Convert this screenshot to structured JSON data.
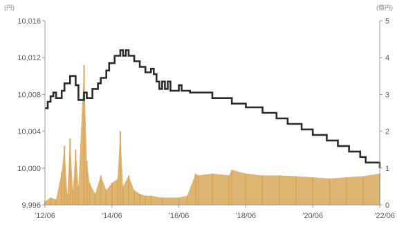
{
  "chart_data": [
    {
      "type": "line",
      "axis": "left",
      "title": "",
      "xlabel": "",
      "ylabel": "",
      "unit": "(円)",
      "ylim": [
        9996,
        10016
      ],
      "yticks": [
        "10,016",
        "10,012",
        "10,008",
        "10,004",
        "10,000",
        "9,996"
      ],
      "ytick_values": [
        10016,
        10012,
        10008,
        10004,
        10000,
        9996
      ],
      "color": "#2b2b2b",
      "points": [
        [
          "2012-06",
          10006.5
        ],
        [
          "2012-07",
          10007.2
        ],
        [
          "2012-08",
          10007.8
        ],
        [
          "2012-09",
          10008.2
        ],
        [
          "2012-10",
          10007.6
        ],
        [
          "2012-12",
          10008.4
        ],
        [
          "2013-01",
          10009.2
        ],
        [
          "2013-03",
          10010.0
        ],
        [
          "2013-05",
          10009.0
        ],
        [
          "2013-06",
          10007.4
        ],
        [
          "2013-08",
          10008.2
        ],
        [
          "2013-09",
          10007.6
        ],
        [
          "2013-11",
          10008.6
        ],
        [
          "2014-01",
          10009.2
        ],
        [
          "2014-02",
          10009.8
        ],
        [
          "2014-04",
          10010.6
        ],
        [
          "2014-05",
          10011.4
        ],
        [
          "2014-07",
          10012.2
        ],
        [
          "2014-09",
          10012.8
        ],
        [
          "2014-10",
          10012.2
        ],
        [
          "2014-11",
          10012.8
        ],
        [
          "2014-12",
          10012.2
        ],
        [
          "2015-02",
          10011.6
        ],
        [
          "2015-04",
          10011.0
        ],
        [
          "2015-06",
          10010.4
        ],
        [
          "2015-08",
          10010.8
        ],
        [
          "2015-09",
          10010.2
        ],
        [
          "2015-10",
          10009.4
        ],
        [
          "2015-11",
          10008.6
        ],
        [
          "2015-12",
          10009.4
        ],
        [
          "2016-01",
          10008.6
        ],
        [
          "2016-02",
          10009.4
        ],
        [
          "2016-03",
          10008.4
        ],
        [
          "2016-06",
          10009.0
        ],
        [
          "2016-07",
          10008.4
        ],
        [
          "2016-10",
          10008.2
        ],
        [
          "2017-03",
          10008.2
        ],
        [
          "2017-06",
          10007.6
        ],
        [
          "2018-01",
          10007.0
        ],
        [
          "2018-06",
          10006.6
        ],
        [
          "2018-12",
          10006.0
        ],
        [
          "2019-05",
          10005.4
        ],
        [
          "2019-09",
          10004.8
        ],
        [
          "2020-02",
          10004.2
        ],
        [
          "2020-06",
          10003.6
        ],
        [
          "2020-11",
          10003.0
        ],
        [
          "2021-03",
          10002.4
        ],
        [
          "2021-07",
          10001.8
        ],
        [
          "2021-11",
          10001.2
        ],
        [
          "2022-01",
          10000.6
        ],
        [
          "2022-06",
          10000.0
        ]
      ]
    },
    {
      "type": "area",
      "axis": "right",
      "title": "",
      "xlabel": "",
      "ylabel": "",
      "unit": "(億円)",
      "ylim": [
        0,
        5
      ],
      "yticks": [
        "5",
        "4",
        "3",
        "2",
        "1",
        "0"
      ],
      "ytick_values": [
        5,
        4,
        3,
        2,
        1,
        0
      ],
      "color": "#d9a85a",
      "points": [
        [
          "2012-06",
          0.1
        ],
        [
          "2012-08",
          0.2
        ],
        [
          "2012-10",
          0.15
        ],
        [
          "2012-12",
          0.9
        ],
        [
          "2013-01",
          1.6
        ],
        [
          "2013-02",
          0.3
        ],
        [
          "2013-03",
          1.8
        ],
        [
          "2013-04",
          0.4
        ],
        [
          "2013-05",
          1.5
        ],
        [
          "2013-06",
          0.5
        ],
        [
          "2013-08",
          3.8
        ],
        [
          "2013-09",
          1.2
        ],
        [
          "2013-10",
          0.6
        ],
        [
          "2013-12",
          0.3
        ],
        [
          "2014-02",
          0.8
        ],
        [
          "2014-04",
          0.4
        ],
        [
          "2014-06",
          0.6
        ],
        [
          "2014-08",
          0.7
        ],
        [
          "2014-09",
          2.0
        ],
        [
          "2014-10",
          0.5
        ],
        [
          "2014-12",
          0.8
        ],
        [
          "2015-02",
          0.4
        ],
        [
          "2015-04",
          0.3
        ],
        [
          "2015-06",
          0.25
        ],
        [
          "2015-08",
          0.25
        ],
        [
          "2015-12",
          0.2
        ],
        [
          "2016-06",
          0.2
        ],
        [
          "2016-09",
          0.25
        ],
        [
          "2016-12",
          0.85
        ],
        [
          "2017-01",
          0.8
        ],
        [
          "2017-06",
          0.85
        ],
        [
          "2017-12",
          0.8
        ],
        [
          "2018-01",
          0.95
        ],
        [
          "2018-06",
          0.85
        ],
        [
          "2018-12",
          0.8
        ],
        [
          "2019-06",
          0.8
        ],
        [
          "2019-12",
          0.78
        ],
        [
          "2020-06",
          0.75
        ],
        [
          "2020-12",
          0.72
        ],
        [
          "2021-06",
          0.75
        ],
        [
          "2021-12",
          0.78
        ],
        [
          "2022-06",
          0.85
        ]
      ]
    }
  ],
  "x_axis": {
    "xlim": [
      "2012-06",
      "2022-06"
    ],
    "ticks": [
      "'12/06",
      "'14/06",
      "'16/06",
      "'18/06",
      "'20/06",
      "'22/06"
    ],
    "tick_values": [
      "2012-06",
      "2014-06",
      "2016-06",
      "2018-06",
      "2020-06",
      "2022-06"
    ]
  },
  "colors": {
    "nav_line": "#2b2b2b",
    "net_assets_area": "#d9a85a",
    "axis": "#9a9a9a",
    "tick_text": "#5a5a5a"
  },
  "grid": false
}
